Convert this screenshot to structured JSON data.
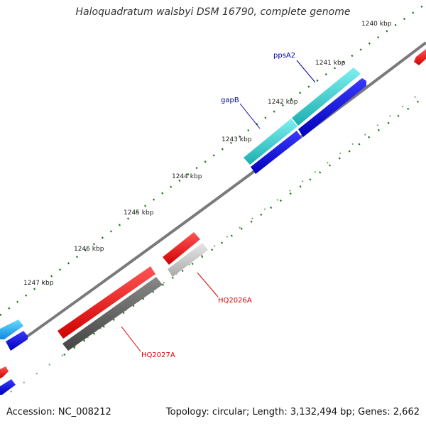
{
  "title": "Haloquadratum walsbyi DSM 16790, complete genome",
  "footer": {
    "accession": "Accession: NC_008212",
    "summary": "Topology: circular; Length: 3,132,494 bp; Genes: 2,662"
  },
  "ticks": [
    "1240 kbp",
    "1241 kbp",
    "1242 kbp",
    "1243 kbp",
    "1244 kbp",
    "1245 kbp",
    "1246 kbp",
    "1247 kbp"
  ],
  "gene_labels": {
    "ppsA2": "ppsA2",
    "gapB": "gapB",
    "HQ2026A": "HQ2026A",
    "HQ2027A": "HQ2027A"
  },
  "colors": {
    "forward_cds": "#ff0000",
    "reverse_cds": "#0000ee",
    "rna_gene": "#22cccc",
    "pseudo": "#666666",
    "backbone": "#888888",
    "tick": "#117711",
    "blue_label": "#0000aa",
    "red_label": "#dd0000"
  }
}
